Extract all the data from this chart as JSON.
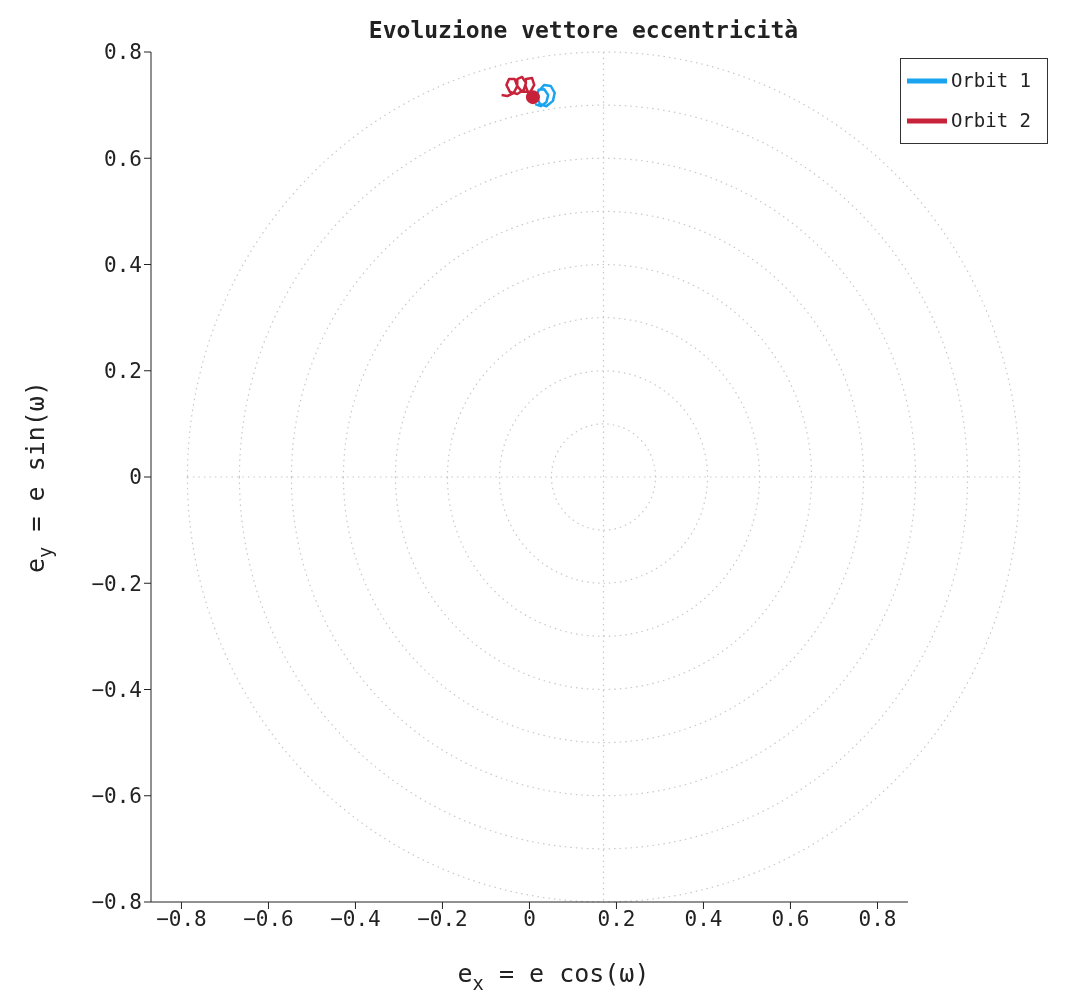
{
  "chart_data": {
    "type": "line",
    "title": "Evoluzione vettore eccentricità",
    "xlabel": "e$_{x}$ = e cos(ω)",
    "ylabel": "e$_{y}$ = e sin(ω)",
    "xlim": [
      -0.87,
      0.87
    ],
    "xticks": [
      -0.8,
      -0.6,
      -0.4,
      -0.2,
      0,
      0.2,
      0.4,
      0.6,
      0.8
    ],
    "ylim": [
      -0.8,
      0.8
    ],
    "yticks": [
      -0.8,
      -0.6,
      -0.4,
      -0.2,
      0,
      0.2,
      0.4,
      0.6,
      0.8
    ],
    "grid": true,
    "legend": "top right",
    "marker": "none",
    "line_style": "solid",
    "series": [
      {
        "name": "Orbit 1",
        "color": "#1aa4f0",
        "x": [
          0.013,
          0.026,
          0.039,
          0.043,
          0.034,
          0.021,
          0.017,
          0.024,
          0.039,
          0.054,
          0.058,
          0.049,
          0.034,
          0.024
        ],
        "values": [
          0.702,
          0.698,
          0.706,
          0.719,
          0.73,
          0.729,
          0.715,
          0.702,
          0.698,
          0.708,
          0.723,
          0.736,
          0.738,
          0.729
        ]
      },
      {
        "name": "Orbit 2",
        "color": "#c8223a",
        "x": [
          -0.064,
          -0.051,
          -0.036,
          -0.028,
          -0.034,
          -0.047,
          -0.053,
          -0.045,
          -0.028,
          -0.013,
          -0.008,
          -0.017,
          -0.028,
          -0.028,
          -0.017,
          0.002,
          0.011,
          0.006,
          -0.008,
          -0.009,
          -0.002,
          0.008
        ],
        "values": [
          0.719,
          0.717,
          0.723,
          0.736,
          0.749,
          0.749,
          0.738,
          0.725,
          0.721,
          0.729,
          0.742,
          0.753,
          0.749,
          0.736,
          0.725,
          0.725,
          0.738,
          0.751,
          0.749,
          0.736,
          0.721,
          0.715
        ]
      },
      {
        "type": "scatter",
        "color": "#c8223a",
        "marker": "circle",
        "x": [
          0.008
        ],
        "values": [
          0.715
        ]
      }
    ]
  }
}
